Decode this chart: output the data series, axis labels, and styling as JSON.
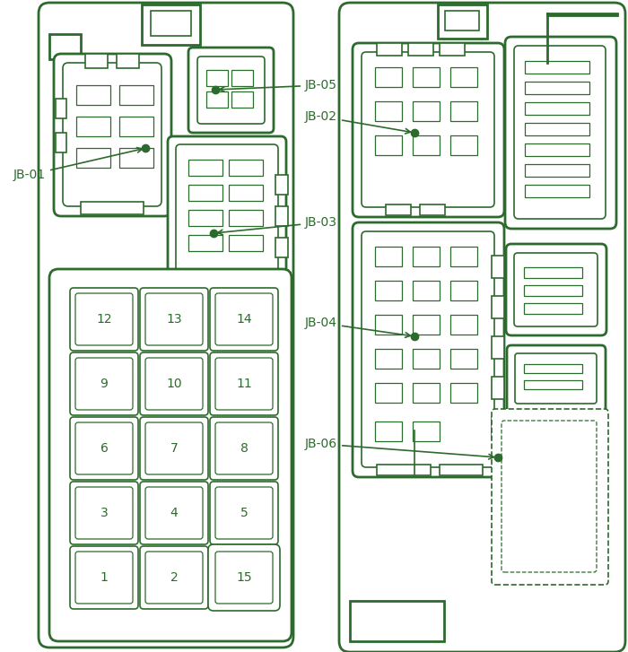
{
  "bg_color": "#ffffff",
  "line_color": "#2d6a2d",
  "fig_width": 7.0,
  "fig_height": 7.27,
  "fuse_numbers": [
    {
      "n": "12",
      "col": 0,
      "row": 4
    },
    {
      "n": "13",
      "col": 1,
      "row": 4
    },
    {
      "n": "14",
      "col": 2,
      "row": 4
    },
    {
      "n": "9",
      "col": 0,
      "row": 3
    },
    {
      "n": "10",
      "col": 1,
      "row": 3
    },
    {
      "n": "11",
      "col": 2,
      "row": 3
    },
    {
      "n": "6",
      "col": 0,
      "row": 2
    },
    {
      "n": "7",
      "col": 1,
      "row": 2
    },
    {
      "n": "8",
      "col": 2,
      "row": 2
    },
    {
      "n": "3",
      "col": 0,
      "row": 1
    },
    {
      "n": "4",
      "col": 1,
      "row": 1
    },
    {
      "n": "5",
      "col": 2,
      "row": 1
    },
    {
      "n": "1",
      "col": 0,
      "row": 0
    },
    {
      "n": "2",
      "col": 1,
      "row": 0
    },
    {
      "n": "15",
      "col": 2,
      "row": 0,
      "special": true
    }
  ]
}
